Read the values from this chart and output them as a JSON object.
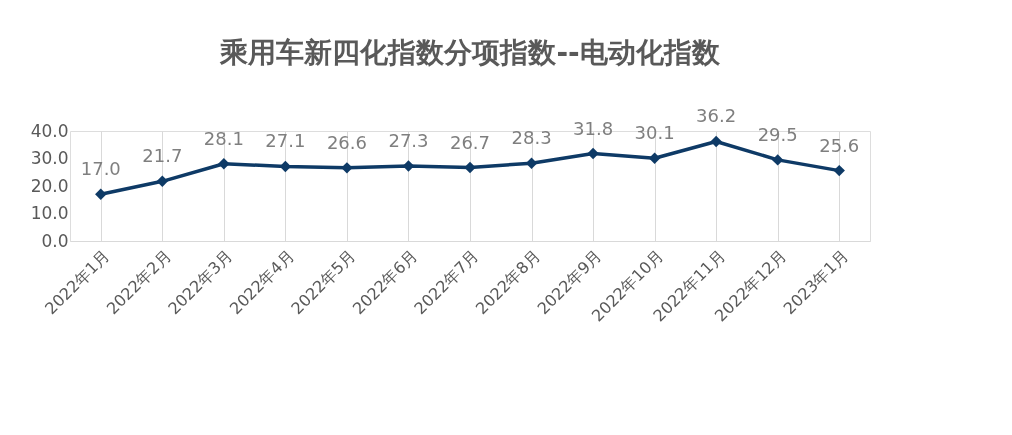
{
  "chart_data": {
    "type": "line",
    "title": "乘用车新四化指数分项指数--电动化指数",
    "categories": [
      "2022年1月",
      "2022年2月",
      "2022年3月",
      "2022年4月",
      "2022年5月",
      "2022年6月",
      "2022年7月",
      "2022年8月",
      "2022年9月",
      "2022年10月",
      "2022年11月",
      "2022年12月",
      "2023年1月"
    ],
    "series": [
      {
        "color": "#0e3a66",
        "values": [
          17.0,
          21.7,
          28.1,
          27.1,
          26.6,
          27.3,
          26.7,
          28.3,
          31.8,
          30.1,
          36.2,
          29.5,
          25.6
        ],
        "value_labels": [
          "17.0",
          "21.7",
          "28.1",
          "27.1",
          "26.6",
          "27.3",
          "26.7",
          "28.3",
          "31.8",
          "30.1",
          "36.2",
          "29.5",
          "25.6"
        ]
      }
    ],
    "ylim": [
      0,
      40
    ],
    "yticks": [
      {
        "value": 0,
        "label": "0.0"
      },
      {
        "value": 10,
        "label": "10.0"
      },
      {
        "value": 20,
        "label": "20.0"
      },
      {
        "value": 30,
        "label": "30.0"
      },
      {
        "value": 40,
        "label": "40.0"
      }
    ],
    "grid": "x",
    "marker": "diamond",
    "line_style": "solid"
  }
}
